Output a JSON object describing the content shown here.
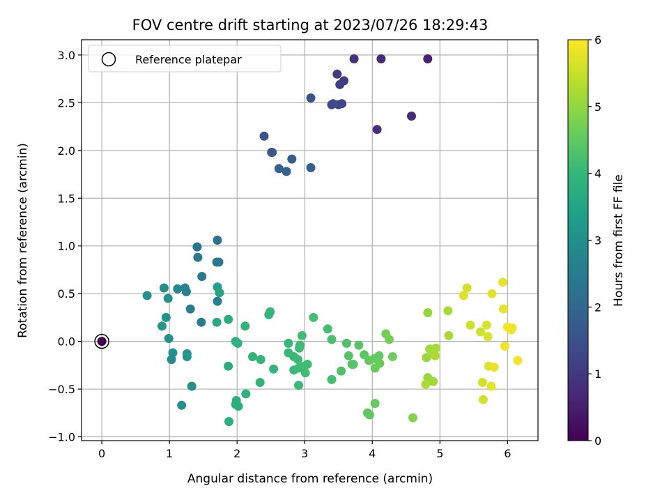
{
  "chart_data": {
    "type": "scatter",
    "title": "FOV centre drift starting at 2023/07/26 18:29:43",
    "xlabel": "Angular distance from reference (arcmin)",
    "ylabel": "Rotation from reference (arcmin)",
    "xlim": [
      -0.3,
      6.45
    ],
    "ylim": [
      -1.04,
      3.16
    ],
    "xticks": [
      0,
      1,
      2,
      3,
      4,
      5,
      6
    ],
    "xtick_labels": [
      "0",
      "1",
      "2",
      "3",
      "4",
      "5",
      "6"
    ],
    "yticks": [
      -1.0,
      -0.5,
      0.0,
      0.5,
      1.0,
      1.5,
      2.0,
      2.5,
      3.0
    ],
    "ytick_labels": [
      "−1.0",
      "−0.5",
      "0.0",
      "0.5",
      "1.0",
      "1.5",
      "2.0",
      "2.5",
      "3.0"
    ],
    "grid": true,
    "colormap": "viridis",
    "colorbar": {
      "label": "Hours from first FF file",
      "range": [
        0,
        6
      ],
      "ticks": [
        0,
        1,
        2,
        3,
        4,
        5,
        6
      ],
      "tick_labels": [
        "0",
        "1",
        "2",
        "3",
        "4",
        "5",
        "6"
      ]
    },
    "legend": {
      "placement": "top-left",
      "entries": [
        "Reference platepar"
      ]
    },
    "reference_point": {
      "x": 0,
      "y": 0,
      "hours": 0
    },
    "points": [
      [
        4.82,
        2.96,
        0.55
      ],
      [
        4.13,
        2.96,
        0.7
      ],
      [
        3.73,
        2.96,
        0.85
      ],
      [
        3.48,
        2.8,
        1.0
      ],
      [
        3.58,
        2.73,
        1.05
      ],
      [
        3.52,
        2.69,
        1.1
      ],
      [
        4.58,
        2.36,
        0.75
      ],
      [
        4.07,
        2.22,
        0.8
      ],
      [
        3.4,
        2.48,
        1.25
      ],
      [
        3.5,
        2.48,
        1.3
      ],
      [
        3.55,
        2.49,
        1.3
      ],
      [
        3.42,
        2.49,
        1.35
      ],
      [
        3.09,
        2.55,
        1.5
      ],
      [
        2.4,
        2.15,
        1.6
      ],
      [
        2.51,
        1.98,
        1.7
      ],
      [
        2.52,
        1.98,
        1.72
      ],
      [
        2.81,
        1.91,
        1.75
      ],
      [
        2.62,
        1.81,
        1.85
      ],
      [
        2.73,
        1.78,
        1.9
      ],
      [
        3.09,
        1.82,
        1.8
      ],
      [
        1.71,
        1.06,
        2.2
      ],
      [
        1.41,
        0.99,
        2.3
      ],
      [
        1.7,
        0.83,
        2.35
      ],
      [
        1.73,
        0.83,
        2.4
      ],
      [
        1.42,
        0.88,
        2.4
      ],
      [
        1.48,
        0.68,
        2.5
      ],
      [
        1.12,
        0.55,
        2.8
      ],
      [
        1.23,
        0.56,
        2.75
      ],
      [
        1.25,
        0.52,
        2.65
      ],
      [
        0.92,
        0.56,
        3.0
      ],
      [
        0.67,
        0.48,
        3.05
      ],
      [
        0.98,
        0.45,
        3.05
      ],
      [
        1.31,
        0.34,
        2.6
      ],
      [
        1.47,
        0.2,
        2.5
      ],
      [
        1.71,
        0.42,
        2.6
      ],
      [
        1.71,
        0.57,
        3.4
      ],
      [
        1.74,
        0.51,
        3.5
      ],
      [
        0.95,
        0.25,
        3.1
      ],
      [
        0.89,
        0.16,
        3.15
      ],
      [
        0.99,
        0.03,
        3.0
      ],
      [
        1.05,
        -0.12,
        3.05
      ],
      [
        1.03,
        -0.19,
        2.95
      ],
      [
        1.26,
        -0.13,
        3.1
      ],
      [
        1.26,
        -0.16,
        3.15
      ],
      [
        1.33,
        -0.47,
        3.0
      ],
      [
        1.18,
        -0.67,
        3.05
      ],
      [
        1.7,
        0.2,
        3.6
      ],
      [
        1.87,
        0.23,
        3.7
      ],
      [
        1.87,
        -0.26,
        3.7
      ],
      [
        1.98,
        0.0,
        3.8
      ],
      [
        2.01,
        -0.02,
        3.85
      ],
      [
        1.99,
        -0.62,
        3.8
      ],
      [
        1.98,
        -0.66,
        3.75
      ],
      [
        2.02,
        -0.68,
        3.8
      ],
      [
        1.88,
        -0.84,
        3.75
      ],
      [
        2.13,
        -0.55,
        3.85
      ],
      [
        2.12,
        0.16,
        3.9
      ],
      [
        2.23,
        -0.16,
        3.9
      ],
      [
        2.35,
        -0.19,
        3.95
      ],
      [
        2.34,
        -0.43,
        3.9
      ],
      [
        2.47,
        0.28,
        3.95
      ],
      [
        2.49,
        0.31,
        4.0
      ],
      [
        2.54,
        -0.29,
        3.95
      ],
      [
        2.76,
        -0.02,
        4.0
      ],
      [
        2.76,
        -0.12,
        4.05
      ],
      [
        2.84,
        -0.16,
        4.05
      ],
      [
        2.9,
        -0.19,
        4.1
      ],
      [
        2.92,
        -0.07,
        4.1
      ],
      [
        2.93,
        -0.04,
        4.1
      ],
      [
        2.96,
        0.06,
        4.15
      ],
      [
        2.84,
        -0.3,
        4.05
      ],
      [
        2.91,
        -0.28,
        4.1
      ],
      [
        2.99,
        -0.26,
        4.15
      ],
      [
        3.04,
        -0.24,
        4.15
      ],
      [
        2.91,
        -0.46,
        4.05
      ],
      [
        3.01,
        -0.33,
        4.15
      ],
      [
        3.13,
        0.25,
        4.2
      ],
      [
        3.34,
        0.13,
        4.2
      ],
      [
        3.4,
        0.02,
        4.25
      ],
      [
        3.4,
        -0.4,
        4.2
      ],
      [
        3.54,
        -0.31,
        4.3
      ],
      [
        3.62,
        -0.02,
        4.3
      ],
      [
        3.65,
        -0.15,
        4.35
      ],
      [
        3.7,
        -0.24,
        4.35
      ],
      [
        3.72,
        -0.24,
        4.4
      ],
      [
        3.8,
        -0.04,
        4.4
      ],
      [
        3.88,
        -0.14,
        4.45
      ],
      [
        3.95,
        -0.2,
        4.5
      ],
      [
        3.93,
        -0.75,
        4.45
      ],
      [
        3.96,
        -0.77,
        4.5
      ],
      [
        4.04,
        -0.65,
        4.55
      ],
      [
        4.03,
        -0.18,
        4.55
      ],
      [
        4.04,
        -0.28,
        4.6
      ],
      [
        4.1,
        -0.15,
        4.55
      ],
      [
        4.11,
        -0.23,
        4.6
      ],
      [
        4.2,
        0.08,
        4.7
      ],
      [
        4.25,
        0.02,
        4.7
      ],
      [
        4.3,
        -0.16,
        4.65
      ],
      [
        4.6,
        -0.8,
        4.85
      ],
      [
        4.82,
        0.3,
        5.05
      ],
      [
        4.8,
        -0.17,
        5.1
      ],
      [
        4.82,
        -0.38,
        5.1
      ],
      [
        4.85,
        -0.08,
        5.15
      ],
      [
        4.9,
        -0.42,
        5.15
      ],
      [
        4.91,
        -0.12,
        5.2
      ],
      [
        4.93,
        -0.15,
        5.25
      ],
      [
        4.94,
        -0.07,
        5.2
      ],
      [
        4.79,
        -0.45,
        5.25
      ],
      [
        5.12,
        0.32,
        5.2
      ],
      [
        5.13,
        0.06,
        5.2
      ],
      [
        5.35,
        0.48,
        5.7
      ],
      [
        5.4,
        0.56,
        5.6
      ],
      [
        5.45,
        0.17,
        5.55
      ],
      [
        5.6,
        0.1,
        5.55
      ],
      [
        5.63,
        -0.43,
        5.6
      ],
      [
        5.64,
        -0.61,
        5.6
      ],
      [
        5.69,
        0.17,
        5.65
      ],
      [
        5.71,
        0.05,
        5.65
      ],
      [
        5.72,
        -0.26,
        5.7
      ],
      [
        5.76,
        -0.47,
        5.75
      ],
      [
        5.77,
        0.5,
        5.75
      ],
      [
        5.8,
        -0.27,
        5.8
      ],
      [
        5.93,
        0.62,
        5.8
      ],
      [
        5.94,
        0.34,
        5.8
      ],
      [
        5.96,
        -0.05,
        5.85
      ],
      [
        6.0,
        0.15,
        5.9
      ],
      [
        6.05,
        0.12,
        5.9
      ],
      [
        6.07,
        0.14,
        5.85
      ],
      [
        6.15,
        -0.2,
        5.9
      ]
    ]
  }
}
